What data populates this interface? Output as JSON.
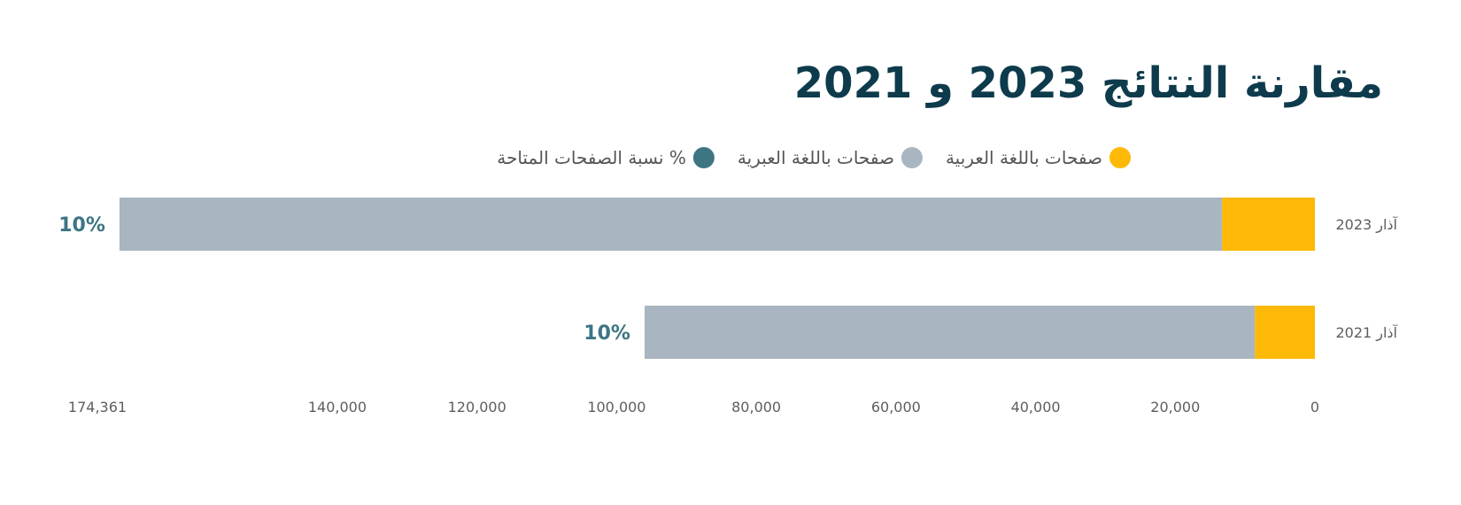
{
  "chart_data": {
    "type": "bar",
    "orientation": "horizontal",
    "stacked": true,
    "direction": "rtl",
    "title": "مقارنة النتائج 2023 و 2021",
    "categories": [
      "آذار 2023",
      "آذار 2021"
    ],
    "series": [
      {
        "name": "صفحات باللغة العربية",
        "color": "#fdb905",
        "values": [
          13300,
          8600
        ]
      },
      {
        "name": "صفحات باللغة العبرية",
        "color": "#a9b5c0",
        "values": [
          157900,
          87400
        ]
      },
      {
        "name": "% نسبة الصفحات المتاحة",
        "color": "#3d7583"
      }
    ],
    "data_labels": [
      "10%",
      "10%"
    ],
    "xlim": [
      0,
      174361
    ],
    "x_ticks": [
      0,
      20000,
      40000,
      60000,
      80000,
      100000,
      120000,
      140000,
      174361
    ],
    "x_tick_labels": [
      "0",
      "20,000",
      "40,000",
      "60,000",
      "80,000",
      "100,000",
      "120,000",
      "140,000",
      "174,361"
    ],
    "legend_position": "top",
    "grid": false
  }
}
